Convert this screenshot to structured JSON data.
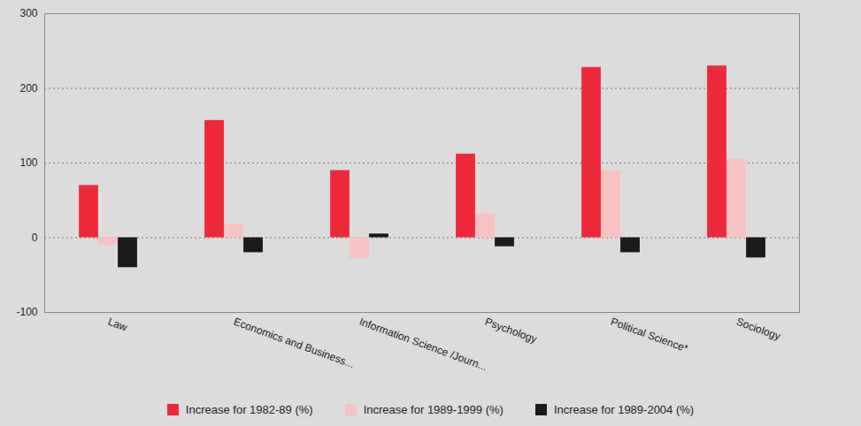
{
  "chart_data": {
    "type": "bar",
    "categories": [
      "Law",
      "Economics and Business...",
      "Information Science /Journ...",
      "Psychology",
      "Political Science*",
      "Sociology"
    ],
    "series": [
      {
        "name": "Increase for 1982-89 (%)",
        "color": "#ee2a3a",
        "values": [
          70,
          157,
          90,
          112,
          228,
          230
        ]
      },
      {
        "name": "Increase for 1989-1999 (%)",
        "color": "#f9c2c2",
        "values": [
          -10,
          18,
          -28,
          32,
          90,
          105
        ]
      },
      {
        "name": "Increase for 1989-2004 (%)",
        "color": "#1a1a1a",
        "values": [
          -40,
          -20,
          5,
          -12,
          -20,
          -27
        ]
      }
    ],
    "ylim": [
      -100,
      300
    ],
    "yticks": [
      -100,
      0,
      100,
      200,
      300
    ],
    "grid": true,
    "legend": "bottom"
  }
}
